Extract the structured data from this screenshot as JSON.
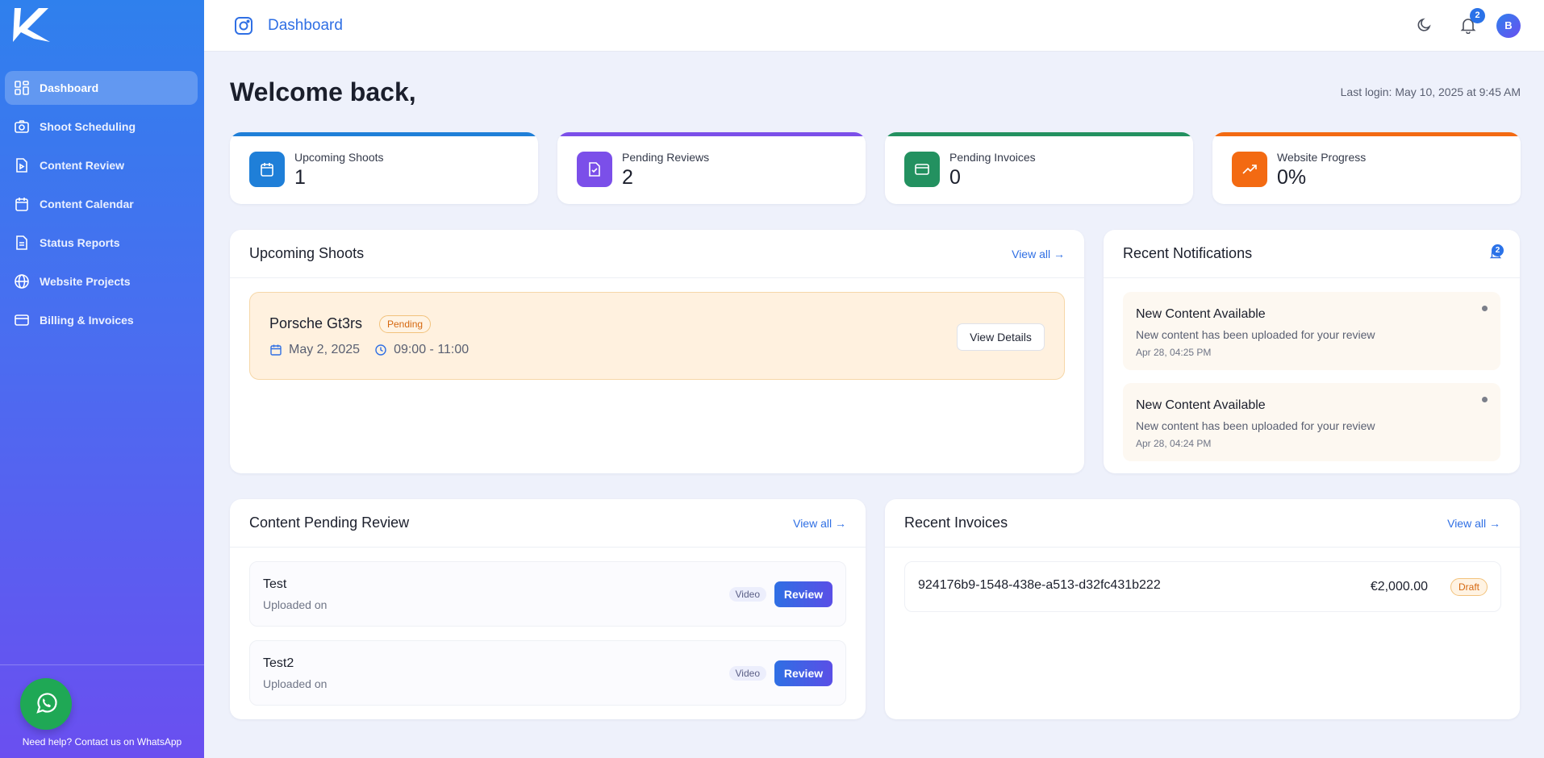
{
  "sidebar": {
    "items": [
      {
        "label": "Dashboard",
        "icon": "grid-icon",
        "active": true
      },
      {
        "label": "Shoot Scheduling",
        "icon": "camera-icon"
      },
      {
        "label": "Content Review",
        "icon": "file-play-icon"
      },
      {
        "label": "Content Calendar",
        "icon": "calendar-icon"
      },
      {
        "label": "Status Reports",
        "icon": "document-icon"
      },
      {
        "label": "Website Projects",
        "icon": "globe-icon"
      },
      {
        "label": "Billing & Invoices",
        "icon": "credit-card-icon"
      }
    ],
    "help_text": "Need help? Contact us on WhatsApp"
  },
  "topbar": {
    "title": "Dashboard",
    "notification_count": "2",
    "avatar_initial": "B"
  },
  "main": {
    "welcome": "Welcome back,",
    "last_login": "Last login: May 10, 2025 at 9:45 AM",
    "stats": [
      {
        "label": "Upcoming Shoots",
        "value": "1",
        "color": "#1f7fd8"
      },
      {
        "label": "Pending Reviews",
        "value": "2",
        "color": "#7b4fe9"
      },
      {
        "label": "Pending Invoices",
        "value": "0",
        "color": "#239160"
      },
      {
        "label": "Website Progress",
        "value": "0%",
        "color": "#f36a12"
      }
    ],
    "upcoming_shoots": {
      "title": "Upcoming Shoots",
      "view_all": "View all →",
      "items": [
        {
          "name": "Porsche Gt3rs",
          "status": "Pending",
          "date": "May 2, 2025",
          "time": "09:00 - 11:00",
          "action": "View Details"
        }
      ]
    },
    "notifications": {
      "title": "Recent Notifications",
      "count": "2",
      "items": [
        {
          "title": "New Content Available",
          "desc": "New content has been uploaded for your review",
          "time": "Apr 28, 04:25 PM"
        },
        {
          "title": "New Content Available",
          "desc": "New content has been uploaded for your review",
          "time": "Apr 28, 04:24 PM"
        }
      ]
    },
    "content_review": {
      "title": "Content Pending Review",
      "view_all": "View all →",
      "items": [
        {
          "title": "Test",
          "sub": "Uploaded on",
          "type": "Video",
          "action": "Review"
        },
        {
          "title": "Test2",
          "sub": "Uploaded on",
          "type": "Video",
          "action": "Review"
        }
      ]
    },
    "invoices": {
      "title": "Recent Invoices",
      "view_all": "View all →",
      "items": [
        {
          "id": "924176b9-1548-438e-a513-d32fc431b222",
          "amount": "€2,000.00",
          "status": "Draft"
        }
      ]
    }
  }
}
